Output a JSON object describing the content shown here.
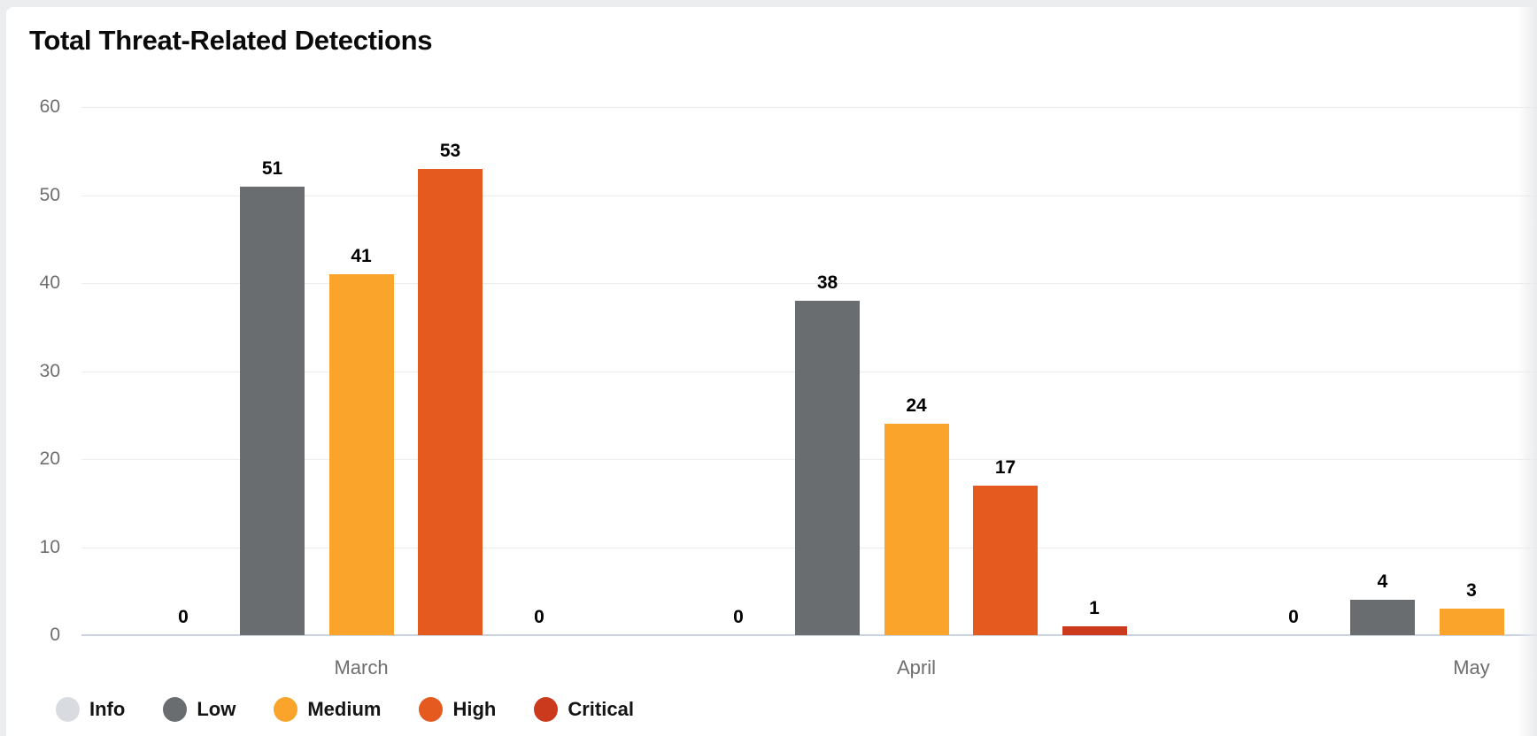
{
  "page": {
    "background_color": "#ECEDEF",
    "card_color": "#FFFFFF"
  },
  "header": {
    "title": "Total Threat-Related Detections"
  },
  "chart_data": {
    "type": "bar",
    "title": "Total Threat-Related Detections",
    "categories": [
      "March",
      "April",
      "May"
    ],
    "series": [
      {
        "name": "Info",
        "color": "#D8DBDF",
        "values": [
          0,
          0,
          0
        ]
      },
      {
        "name": "Low",
        "color": "#6A6D70",
        "values": [
          51,
          38,
          4
        ]
      },
      {
        "name": "Medium",
        "color": "#FAA42B",
        "values": [
          41,
          24,
          3
        ]
      },
      {
        "name": "High",
        "color": "#E55B1F",
        "values": [
          53,
          17,
          null
        ]
      },
      {
        "name": "Critical",
        "color": "#CC3A1D",
        "values": [
          0,
          1,
          null
        ]
      }
    ],
    "y_axis": {
      "min": 0,
      "max": 60,
      "ticks": [
        0,
        10,
        20,
        30,
        40,
        50,
        60
      ]
    },
    "grid": true,
    "value_labels": true,
    "legend_position": "bottom",
    "colors": {
      "gridline": "#ECECEC",
      "zero_axis_line": "#C9D3E2",
      "tick_label": "#6E6E6E",
      "category_label": "#6E6E6E",
      "value_label": "#000000",
      "title": "#0A0A0A"
    }
  }
}
